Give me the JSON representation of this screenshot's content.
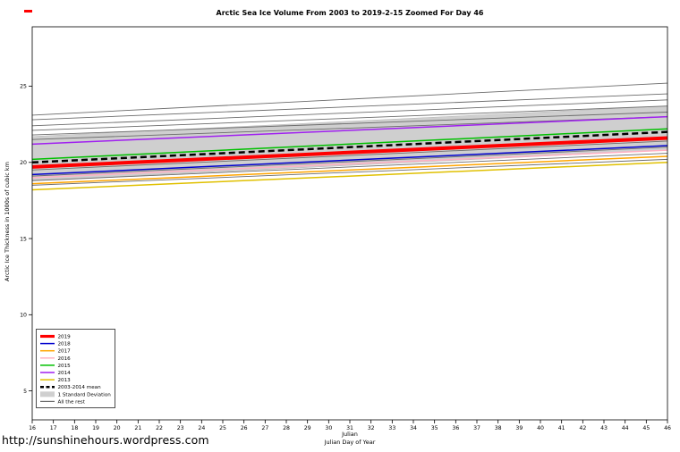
{
  "url_caption": "http://sunshinehours.wordpress.com",
  "chart_data": {
    "type": "line",
    "title": "Arctic Sea Ice Volume From 2003 to 2019-2-15 Zoomed For Day 46",
    "xlabel": "Julian Day of Year",
    "xlabel_secondary": "Julian",
    "ylabel": "Arctic Ice Thickness in 1000s of cubic km",
    "xlim": [
      16,
      46
    ],
    "ylim": [
      3.1,
      28.9
    ],
    "x_ticks": [
      16,
      17,
      18,
      19,
      20,
      21,
      22,
      23,
      24,
      25,
      26,
      27,
      28,
      29,
      30,
      31,
      32,
      33,
      34,
      35,
      36,
      37,
      38,
      39,
      40,
      41,
      42,
      43,
      44,
      45,
      46
    ],
    "y_ticks": [
      5,
      10,
      15,
      20,
      25
    ],
    "grid": false,
    "legend_position": "bottom-left",
    "x": [
      16,
      46
    ],
    "series": [
      {
        "name": "2019",
        "color": "#ff0000",
        "width": 4,
        "dashed": false,
        "values": [
          19.7,
          21.6
        ]
      },
      {
        "name": "2018",
        "color": "#0000cd",
        "width": 1.5,
        "dashed": false,
        "values": [
          19.2,
          21.1
        ]
      },
      {
        "name": "2017",
        "color": "#ffa500",
        "width": 1.5,
        "dashed": false,
        "values": [
          18.6,
          20.4
        ]
      },
      {
        "name": "2016",
        "color": "#ffb0c4",
        "width": 1.5,
        "dashed": false,
        "values": [
          19.0,
          20.8
        ]
      },
      {
        "name": "2015",
        "color": "#00c000",
        "width": 1.5,
        "dashed": false,
        "values": [
          20.2,
          22.2
        ]
      },
      {
        "name": "2014",
        "color": "#a020f0",
        "width": 1.5,
        "dashed": false,
        "values": [
          21.2,
          23.0
        ]
      },
      {
        "name": "2013",
        "color": "#e0c000",
        "width": 1.5,
        "dashed": false,
        "values": [
          18.2,
          20.0
        ]
      },
      {
        "name": "2003-2014 mean",
        "color": "#000000",
        "width": 2.5,
        "dashed": true,
        "values": [
          20.0,
          22.0
        ]
      }
    ],
    "std_band": {
      "name": "1 Standard Deviation",
      "color": "#cfcfcf",
      "upper": [
        21.7,
        23.7
      ],
      "lower": [
        18.8,
        20.8
      ]
    },
    "rest": {
      "name": "All the rest",
      "color": "#6b6b6b",
      "lines": [
        [
          23.1,
          25.2
        ],
        [
          22.8,
          24.5
        ],
        [
          22.4,
          24.1
        ],
        [
          22.1,
          23.7
        ],
        [
          21.8,
          23.3
        ],
        [
          21.5,
          23.0
        ],
        [
          19.5,
          21.4
        ],
        [
          19.1,
          21.0
        ],
        [
          18.8,
          20.6
        ],
        [
          18.5,
          20.2
        ]
      ]
    }
  }
}
